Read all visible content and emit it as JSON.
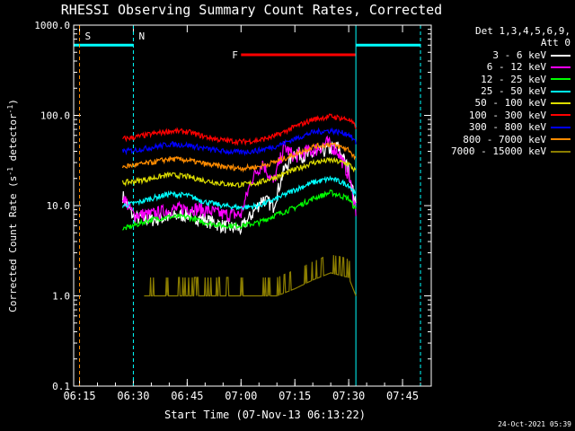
{
  "chart_data": {
    "type": "line",
    "title": "RHESSI Observing Summary Count Rates, Corrected",
    "xlabel": "Start Time (07-Nov-13 06:13:22)",
    "ylabel": "Corrected Count Rate (s⁻¹ detector⁻¹)",
    "ylabel_main": "Corrected Count Rate (s",
    "ylabel_mid": " detector",
    "ylabel_end": ")",
    "ylabel_sup": "-1",
    "y_scale": "log",
    "ylim": [
      0.1,
      1000
    ],
    "xlim": [
      "06:13:22",
      "07:53:00"
    ],
    "x_ticks": [
      "06:15",
      "06:30",
      "06:45",
      "07:00",
      "07:15",
      "07:30",
      "07:45"
    ],
    "y_ticks": [
      "0.1",
      "1.0",
      "10.0",
      "100.0",
      "1000.0"
    ],
    "grid": false,
    "legend_position": "right",
    "legend_header": [
      "Det 1,3,4,5,6,9,",
      "Att 0"
    ],
    "series": [
      {
        "name": "3 - 6 keV",
        "color": "#ffffff",
        "key": "s36",
        "x": [
          "06:27:00",
          "06:30:00",
          "06:35:00",
          "06:40:00",
          "06:45:00",
          "06:50:00",
          "06:55:00",
          "07:00:00",
          "07:03:00",
          "07:06:00",
          "07:09:00",
          "07:12:00",
          "07:15:00",
          "07:18:00",
          "07:21:00",
          "07:24:00",
          "07:27:00",
          "07:30:00",
          "07:32:00"
        ],
        "values": [
          13,
          7.5,
          7,
          7.5,
          8,
          7,
          6,
          5.5,
          8,
          12,
          10,
          25,
          40,
          35,
          38,
          42,
          45,
          25,
          10
        ]
      },
      {
        "name": "6 - 12 keV",
        "color": "#ff00ff",
        "key": "s612",
        "x": [
          "06:27:00",
          "06:30:00",
          "06:35:00",
          "06:40:00",
          "06:45:00",
          "06:50:00",
          "06:55:00",
          "07:00:00",
          "07:03:00",
          "07:06:00",
          "07:09:00",
          "07:12:00",
          "07:15:00",
          "07:18:00",
          "07:21:00",
          "07:24:00",
          "07:27:00",
          "07:30:00",
          "07:32:00"
        ],
        "values": [
          13,
          8,
          8,
          9,
          9.5,
          9,
          8,
          8,
          20,
          30,
          18,
          45,
          35,
          40,
          42,
          50,
          40,
          22,
          9
        ]
      },
      {
        "name": "12 - 25 keV",
        "color": "#00ff00",
        "key": "s1225",
        "x": [
          "06:27:00",
          "06:30:00",
          "06:35:00",
          "06:40:00",
          "06:45:00",
          "06:50:00",
          "06:55:00",
          "07:00:00",
          "07:05:00",
          "07:10:00",
          "07:15:00",
          "07:20:00",
          "07:25:00",
          "07:30:00",
          "07:32:00"
        ],
        "values": [
          5.5,
          6,
          7,
          7.5,
          7.5,
          6.5,
          6,
          6,
          6.5,
          8,
          9.5,
          12,
          14,
          12,
          9
        ]
      },
      {
        "name": "25 - 50 keV",
        "color": "#00ffff",
        "key": "s2550",
        "x": [
          "06:27:00",
          "06:30:00",
          "06:35:00",
          "06:40:00",
          "06:45:00",
          "06:50:00",
          "06:55:00",
          "07:00:00",
          "07:05:00",
          "07:10:00",
          "07:15:00",
          "07:20:00",
          "07:25:00",
          "07:30:00",
          "07:32:00"
        ],
        "values": [
          10,
          10.5,
          12,
          13.5,
          13,
          11,
          10,
          9.5,
          10,
          12,
          15,
          18,
          20,
          17,
          13
        ]
      },
      {
        "name": "50 - 100 keV",
        "color": "#dddd00",
        "key": "s50100",
        "x": [
          "06:27:00",
          "06:30:00",
          "06:35:00",
          "06:40:00",
          "06:45:00",
          "06:50:00",
          "06:55:00",
          "07:00:00",
          "07:05:00",
          "07:10:00",
          "07:15:00",
          "07:20:00",
          "07:25:00",
          "07:30:00",
          "07:32:00"
        ],
        "values": [
          18,
          18.5,
          20,
          22,
          21,
          19,
          17.5,
          17,
          18,
          21,
          25,
          30,
          32,
          29,
          24
        ]
      },
      {
        "name": "100 - 300 keV",
        "color": "#ff0000",
        "key": "s100300",
        "x": [
          "06:27:00",
          "06:30:00",
          "06:35:00",
          "06:40:00",
          "06:45:00",
          "06:50:00",
          "06:55:00",
          "07:00:00",
          "07:05:00",
          "07:10:00",
          "07:15:00",
          "07:20:00",
          "07:25:00",
          "07:30:00",
          "07:32:00"
        ],
        "values": [
          55,
          57,
          62,
          67,
          66,
          58,
          53,
          51,
          53,
          60,
          75,
          90,
          98,
          90,
          75
        ]
      },
      {
        "name": "300 - 800 keV",
        "color": "#0000ff",
        "key": "s300800",
        "x": [
          "06:27:00",
          "06:30:00",
          "06:35:00",
          "06:40:00",
          "06:45:00",
          "06:50:00",
          "06:55:00",
          "07:00:00",
          "07:05:00",
          "07:10:00",
          "07:15:00",
          "07:20:00",
          "07:25:00",
          "07:30:00",
          "07:32:00"
        ],
        "values": [
          40,
          41,
          44,
          48,
          47,
          43,
          40,
          39,
          41,
          46,
          55,
          65,
          68,
          62,
          50
        ]
      },
      {
        "name": "800 - 7000 keV",
        "color": "#ff8c00",
        "key": "s8007000",
        "x": [
          "06:27:00",
          "06:30:00",
          "06:35:00",
          "06:40:00",
          "06:45:00",
          "06:50:00",
          "06:55:00",
          "07:00:00",
          "07:05:00",
          "07:10:00",
          "07:15:00",
          "07:20:00",
          "07:25:00",
          "07:30:00",
          "07:32:00"
        ],
        "values": [
          27,
          28,
          30,
          33,
          32,
          29,
          27,
          26,
          27,
          31,
          37,
          45,
          48,
          42,
          33
        ]
      },
      {
        "name": "7000 - 15000 keV",
        "color": "#8b7d00",
        "key": "s700015000",
        "x": [
          "06:33:00",
          "06:40:00",
          "06:50:00",
          "07:00:00",
          "07:10:00",
          "07:15:00",
          "07:20:00",
          "07:25:00",
          "07:30:00",
          "07:32:00"
        ],
        "values": [
          1.0,
          1.0,
          1.0,
          1.0,
          1.0,
          1.2,
          1.5,
          1.8,
          1.6,
          1.0
        ]
      }
    ],
    "annotations": [
      {
        "label": "S",
        "color": "#ff8c00",
        "x": "06:15:00"
      },
      {
        "label": "N",
        "color": "#00ffff",
        "x": "06:30:00"
      },
      {
        "label": "F",
        "color": "#ff0000",
        "x_start": "07:00:00",
        "x_end": "07:32:00"
      }
    ],
    "bar_segments": [
      {
        "color": "#00ffff",
        "x_start": "06:13:22",
        "x_end": "06:30:00",
        "level": 600
      },
      {
        "color": "#00ffff",
        "x_start": "07:32:00",
        "x_end": "07:50:00",
        "level": 600
      }
    ]
  },
  "footer": {
    "timestamp": "24-Oct-2021 05:39"
  }
}
